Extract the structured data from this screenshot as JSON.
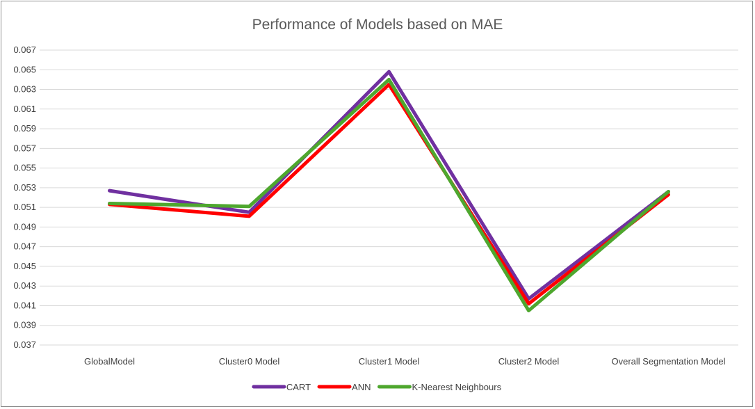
{
  "chart_data": {
    "type": "line",
    "title": "Performance of Models based on MAE",
    "xlabel": "",
    "ylabel": "",
    "categories": [
      "GlobalModel",
      "Cluster0 Model",
      "Cluster1 Model",
      "Cluster2 Model",
      "Overall Segmentation Model"
    ],
    "yticks": [
      "0.067",
      "0.065",
      "0.063",
      "0.061",
      "0.059",
      "0.057",
      "0.055",
      "0.053",
      "0.051",
      "0.049",
      "0.047",
      "0.045",
      "0.043",
      "0.041",
      "0.039",
      "0.037"
    ],
    "ylim": [
      0.036,
      0.068
    ],
    "grid": true,
    "legend_position": "bottom",
    "series": [
      {
        "name": "CART",
        "color": "#7030A0",
        "values": [
          0.0527,
          0.0505,
          0.0648,
          0.0417,
          0.0526
        ]
      },
      {
        "name": "ANN",
        "color": "#FF0000",
        "values": [
          0.0513,
          0.0501,
          0.0635,
          0.0412,
          0.0523
        ]
      },
      {
        "name": "K-Nearest Neighbours",
        "color": "#4EA72E",
        "values": [
          0.0514,
          0.0511,
          0.064,
          0.0405,
          0.0526
        ]
      }
    ]
  }
}
